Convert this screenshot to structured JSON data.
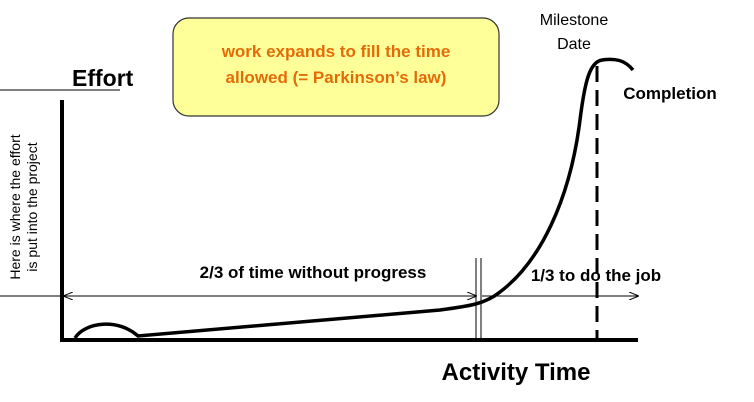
{
  "callout": {
    "lines": [
      "work expands to fill the time",
      "allowed (= Parkinson’s law)"
    ]
  },
  "y_axis_label": "Effort",
  "x_axis_label": "Activity Time",
  "side_note": {
    "lines": [
      "Here is where the effort",
      "is put into the project"
    ]
  },
  "milestone": {
    "lines": [
      "Milestone",
      "Date"
    ]
  },
  "completion": "Completion",
  "phase_before": "2/3 of time without progress",
  "phase_after": "1/3 to do the job"
}
